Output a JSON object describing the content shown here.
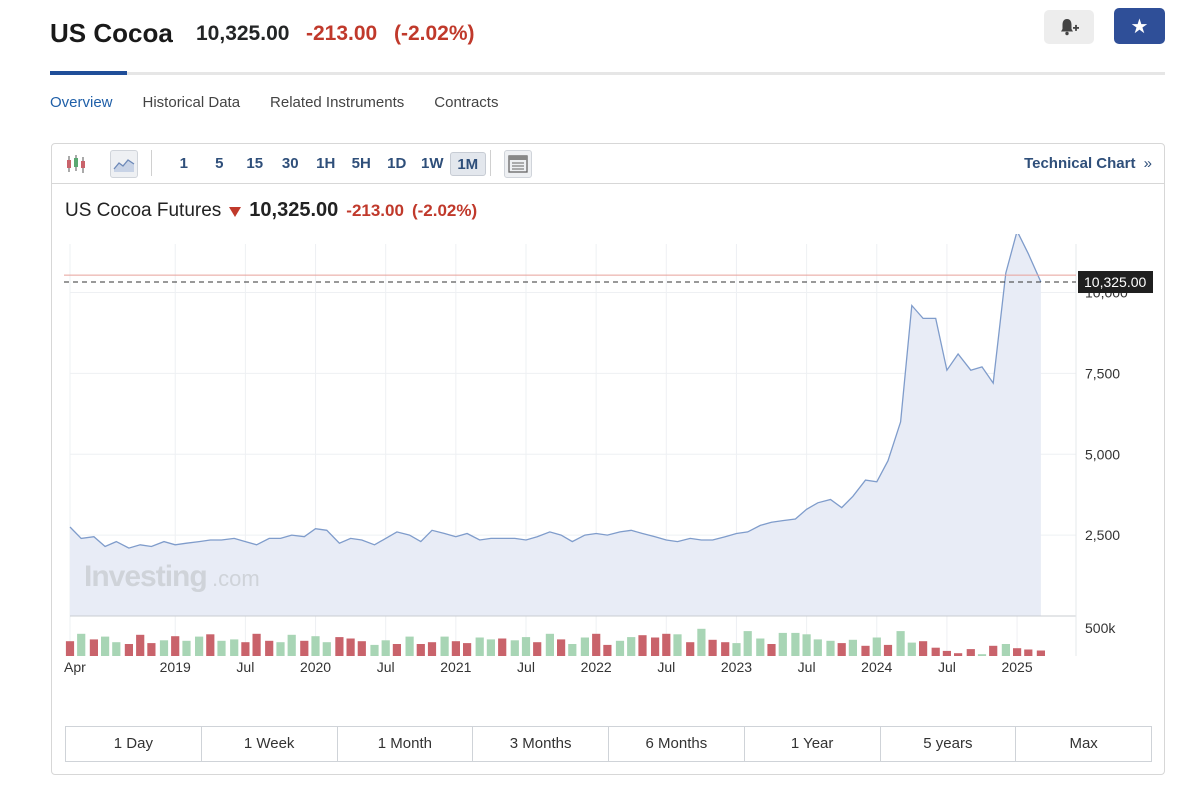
{
  "header": {
    "title": "US Cocoa",
    "price": "10,325.00",
    "change": "-213.00",
    "change_pct": "(-2.02%)"
  },
  "tabs": [
    {
      "label": "Overview",
      "active": true
    },
    {
      "label": "Historical Data"
    },
    {
      "label": "Related Instruments"
    },
    {
      "label": "Contracts"
    }
  ],
  "toolbar": {
    "intervals": [
      "1",
      "5",
      "15",
      "30",
      "1H",
      "5H",
      "1D",
      "1W",
      "1M"
    ],
    "active_interval": "1M",
    "technical_link": "Technical Chart",
    "technical_link_chevron": "»"
  },
  "instrument": {
    "name": "US Cocoa Futures",
    "price": "10,325.00",
    "change": "-213.00",
    "change_pct": "(-2.02%)"
  },
  "watermark": {
    "brand": "Investing",
    "suffix": ".com"
  },
  "ranges": [
    "1 Day",
    "1 Week",
    "1 Month",
    "3 Months",
    "6 Months",
    "1 Year",
    "5 years",
    "Max"
  ],
  "colors": {
    "accent": "#1f4e99",
    "down": "#c0392b",
    "line": "#7f9ccb",
    "area": "#e8ecf6",
    "vol_up": "#a8d5b5",
    "vol_down": "#c9636b"
  },
  "chart_data": {
    "type": "area",
    "y_ticks": [
      "2,500",
      "5,000",
      "7,500",
      "10,000"
    ],
    "y_tick_values": [
      2500,
      5000,
      7500,
      10000
    ],
    "ylim": [
      0,
      11500
    ],
    "x_ticks": [
      {
        "label": "Apr",
        "t": 2018.25
      },
      {
        "label": "2019",
        "t": 2019.0
      },
      {
        "label": "Jul",
        "t": 2019.5
      },
      {
        "label": "2020",
        "t": 2020.0
      },
      {
        "label": "Jul",
        "t": 2020.5
      },
      {
        "label": "2021",
        "t": 2021.0
      },
      {
        "label": "Jul",
        "t": 2021.5
      },
      {
        "label": "2022",
        "t": 2022.0
      },
      {
        "label": "Jul",
        "t": 2022.5
      },
      {
        "label": "2023",
        "t": 2023.0
      },
      {
        "label": "Jul",
        "t": 2023.5
      },
      {
        "label": "2024",
        "t": 2024.0
      },
      {
        "label": "Jul",
        "t": 2024.5
      },
      {
        "label": "2025",
        "t": 2025.0
      }
    ],
    "xlim": [
      2018.25,
      2025.42
    ],
    "last_price_label": "10,325.00",
    "last_price": 10325,
    "prev_close": 10538,
    "volume_label": "500k",
    "x": [
      2018.25,
      2018.33,
      2018.42,
      2018.5,
      2018.58,
      2018.67,
      2018.75,
      2018.83,
      2018.92,
      2019.0,
      2019.08,
      2019.17,
      2019.25,
      2019.33,
      2019.42,
      2019.5,
      2019.58,
      2019.67,
      2019.75,
      2019.83,
      2019.92,
      2020.0,
      2020.08,
      2020.17,
      2020.25,
      2020.33,
      2020.42,
      2020.5,
      2020.58,
      2020.67,
      2020.75,
      2020.83,
      2020.92,
      2021.0,
      2021.08,
      2021.17,
      2021.25,
      2021.33,
      2021.42,
      2021.5,
      2021.58,
      2021.67,
      2021.75,
      2021.83,
      2021.92,
      2022.0,
      2022.08,
      2022.17,
      2022.25,
      2022.33,
      2022.42,
      2022.5,
      2022.58,
      2022.67,
      2022.75,
      2022.83,
      2022.92,
      2023.0,
      2023.08,
      2023.17,
      2023.25,
      2023.33,
      2023.42,
      2023.5,
      2023.58,
      2023.67,
      2023.75,
      2023.83,
      2023.92,
      2024.0,
      2024.08,
      2024.17,
      2024.25,
      2024.33,
      2024.42,
      2024.5,
      2024.58,
      2024.67,
      2024.75,
      2024.83,
      2024.92,
      2025.0,
      2025.08,
      2025.17
    ],
    "close": [
      2750,
      2400,
      2450,
      2150,
      2300,
      2100,
      2200,
      2150,
      2300,
      2200,
      2250,
      2300,
      2350,
      2350,
      2400,
      2300,
      2200,
      2400,
      2400,
      2500,
      2450,
      2700,
      2650,
      2250,
      2400,
      2350,
      2200,
      2400,
      2600,
      2500,
      2300,
      2650,
      2550,
      2450,
      2550,
      2350,
      2400,
      2400,
      2400,
      2350,
      2450,
      2600,
      2500,
      2300,
      2500,
      2550,
      2500,
      2600,
      2650,
      2550,
      2450,
      2350,
      2300,
      2400,
      2350,
      2350,
      2450,
      2550,
      2600,
      2800,
      2900,
      2950,
      3000,
      3300,
      3500,
      3600,
      3350,
      3700,
      4200,
      4150,
      4800,
      6000,
      9600,
      9200,
      9200,
      7600,
      8100,
      7600,
      7700,
      7200,
      10600,
      11900,
      11200,
      10325
    ],
    "volume": [
      {
        "v": 320,
        "up": false
      },
      {
        "v": 480,
        "up": true
      },
      {
        "v": 360,
        "up": false
      },
      {
        "v": 420,
        "up": true
      },
      {
        "v": 300,
        "up": true
      },
      {
        "v": 260,
        "up": false
      },
      {
        "v": 460,
        "up": false
      },
      {
        "v": 280,
        "up": false
      },
      {
        "v": 340,
        "up": true
      },
      {
        "v": 430,
        "up": false
      },
      {
        "v": 330,
        "up": true
      },
      {
        "v": 420,
        "up": true
      },
      {
        "v": 470,
        "up": false
      },
      {
        "v": 330,
        "up": true
      },
      {
        "v": 360,
        "up": true
      },
      {
        "v": 300,
        "up": false
      },
      {
        "v": 480,
        "up": false
      },
      {
        "v": 330,
        "up": false
      },
      {
        "v": 300,
        "up": true
      },
      {
        "v": 460,
        "up": true
      },
      {
        "v": 330,
        "up": false
      },
      {
        "v": 430,
        "up": true
      },
      {
        "v": 300,
        "up": true
      },
      {
        "v": 410,
        "up": false
      },
      {
        "v": 380,
        "up": false
      },
      {
        "v": 320,
        "up": false
      },
      {
        "v": 240,
        "up": true
      },
      {
        "v": 340,
        "up": true
      },
      {
        "v": 260,
        "up": false
      },
      {
        "v": 420,
        "up": true
      },
      {
        "v": 260,
        "up": false
      },
      {
        "v": 300,
        "up": false
      },
      {
        "v": 420,
        "up": true
      },
      {
        "v": 320,
        "up": false
      },
      {
        "v": 280,
        "up": false
      },
      {
        "v": 400,
        "up": true
      },
      {
        "v": 360,
        "up": true
      },
      {
        "v": 380,
        "up": false
      },
      {
        "v": 340,
        "up": true
      },
      {
        "v": 410,
        "up": true
      },
      {
        "v": 300,
        "up": false
      },
      {
        "v": 480,
        "up": true
      },
      {
        "v": 360,
        "up": false
      },
      {
        "v": 260,
        "up": true
      },
      {
        "v": 400,
        "up": true
      },
      {
        "v": 480,
        "up": false
      },
      {
        "v": 240,
        "up": false
      },
      {
        "v": 330,
        "up": true
      },
      {
        "v": 410,
        "up": true
      },
      {
        "v": 450,
        "up": false
      },
      {
        "v": 400,
        "up": false
      },
      {
        "v": 480,
        "up": false
      },
      {
        "v": 470,
        "up": true
      },
      {
        "v": 300,
        "up": false
      },
      {
        "v": 590,
        "up": true
      },
      {
        "v": 350,
        "up": false
      },
      {
        "v": 300,
        "up": false
      },
      {
        "v": 280,
        "up": true
      },
      {
        "v": 540,
        "up": true
      },
      {
        "v": 380,
        "up": true
      },
      {
        "v": 260,
        "up": false
      },
      {
        "v": 500,
        "up": true
      },
      {
        "v": 500,
        "up": true
      },
      {
        "v": 470,
        "up": true
      },
      {
        "v": 360,
        "up": true
      },
      {
        "v": 330,
        "up": true
      },
      {
        "v": 280,
        "up": false
      },
      {
        "v": 350,
        "up": true
      },
      {
        "v": 220,
        "up": false
      },
      {
        "v": 400,
        "up": true
      },
      {
        "v": 240,
        "up": false
      },
      {
        "v": 540,
        "up": true
      },
      {
        "v": 290,
        "up": true
      },
      {
        "v": 320,
        "up": false
      },
      {
        "v": 180,
        "up": false
      },
      {
        "v": 110,
        "up": false
      },
      {
        "v": 60,
        "up": false
      },
      {
        "v": 150,
        "up": false
      },
      {
        "v": 40,
        "up": true
      },
      {
        "v": 220,
        "up": false
      },
      {
        "v": 260,
        "up": true
      },
      {
        "v": 170,
        "up": false
      },
      {
        "v": 140,
        "up": false
      },
      {
        "v": 120,
        "up": false
      }
    ],
    "volume_max": 650
  }
}
